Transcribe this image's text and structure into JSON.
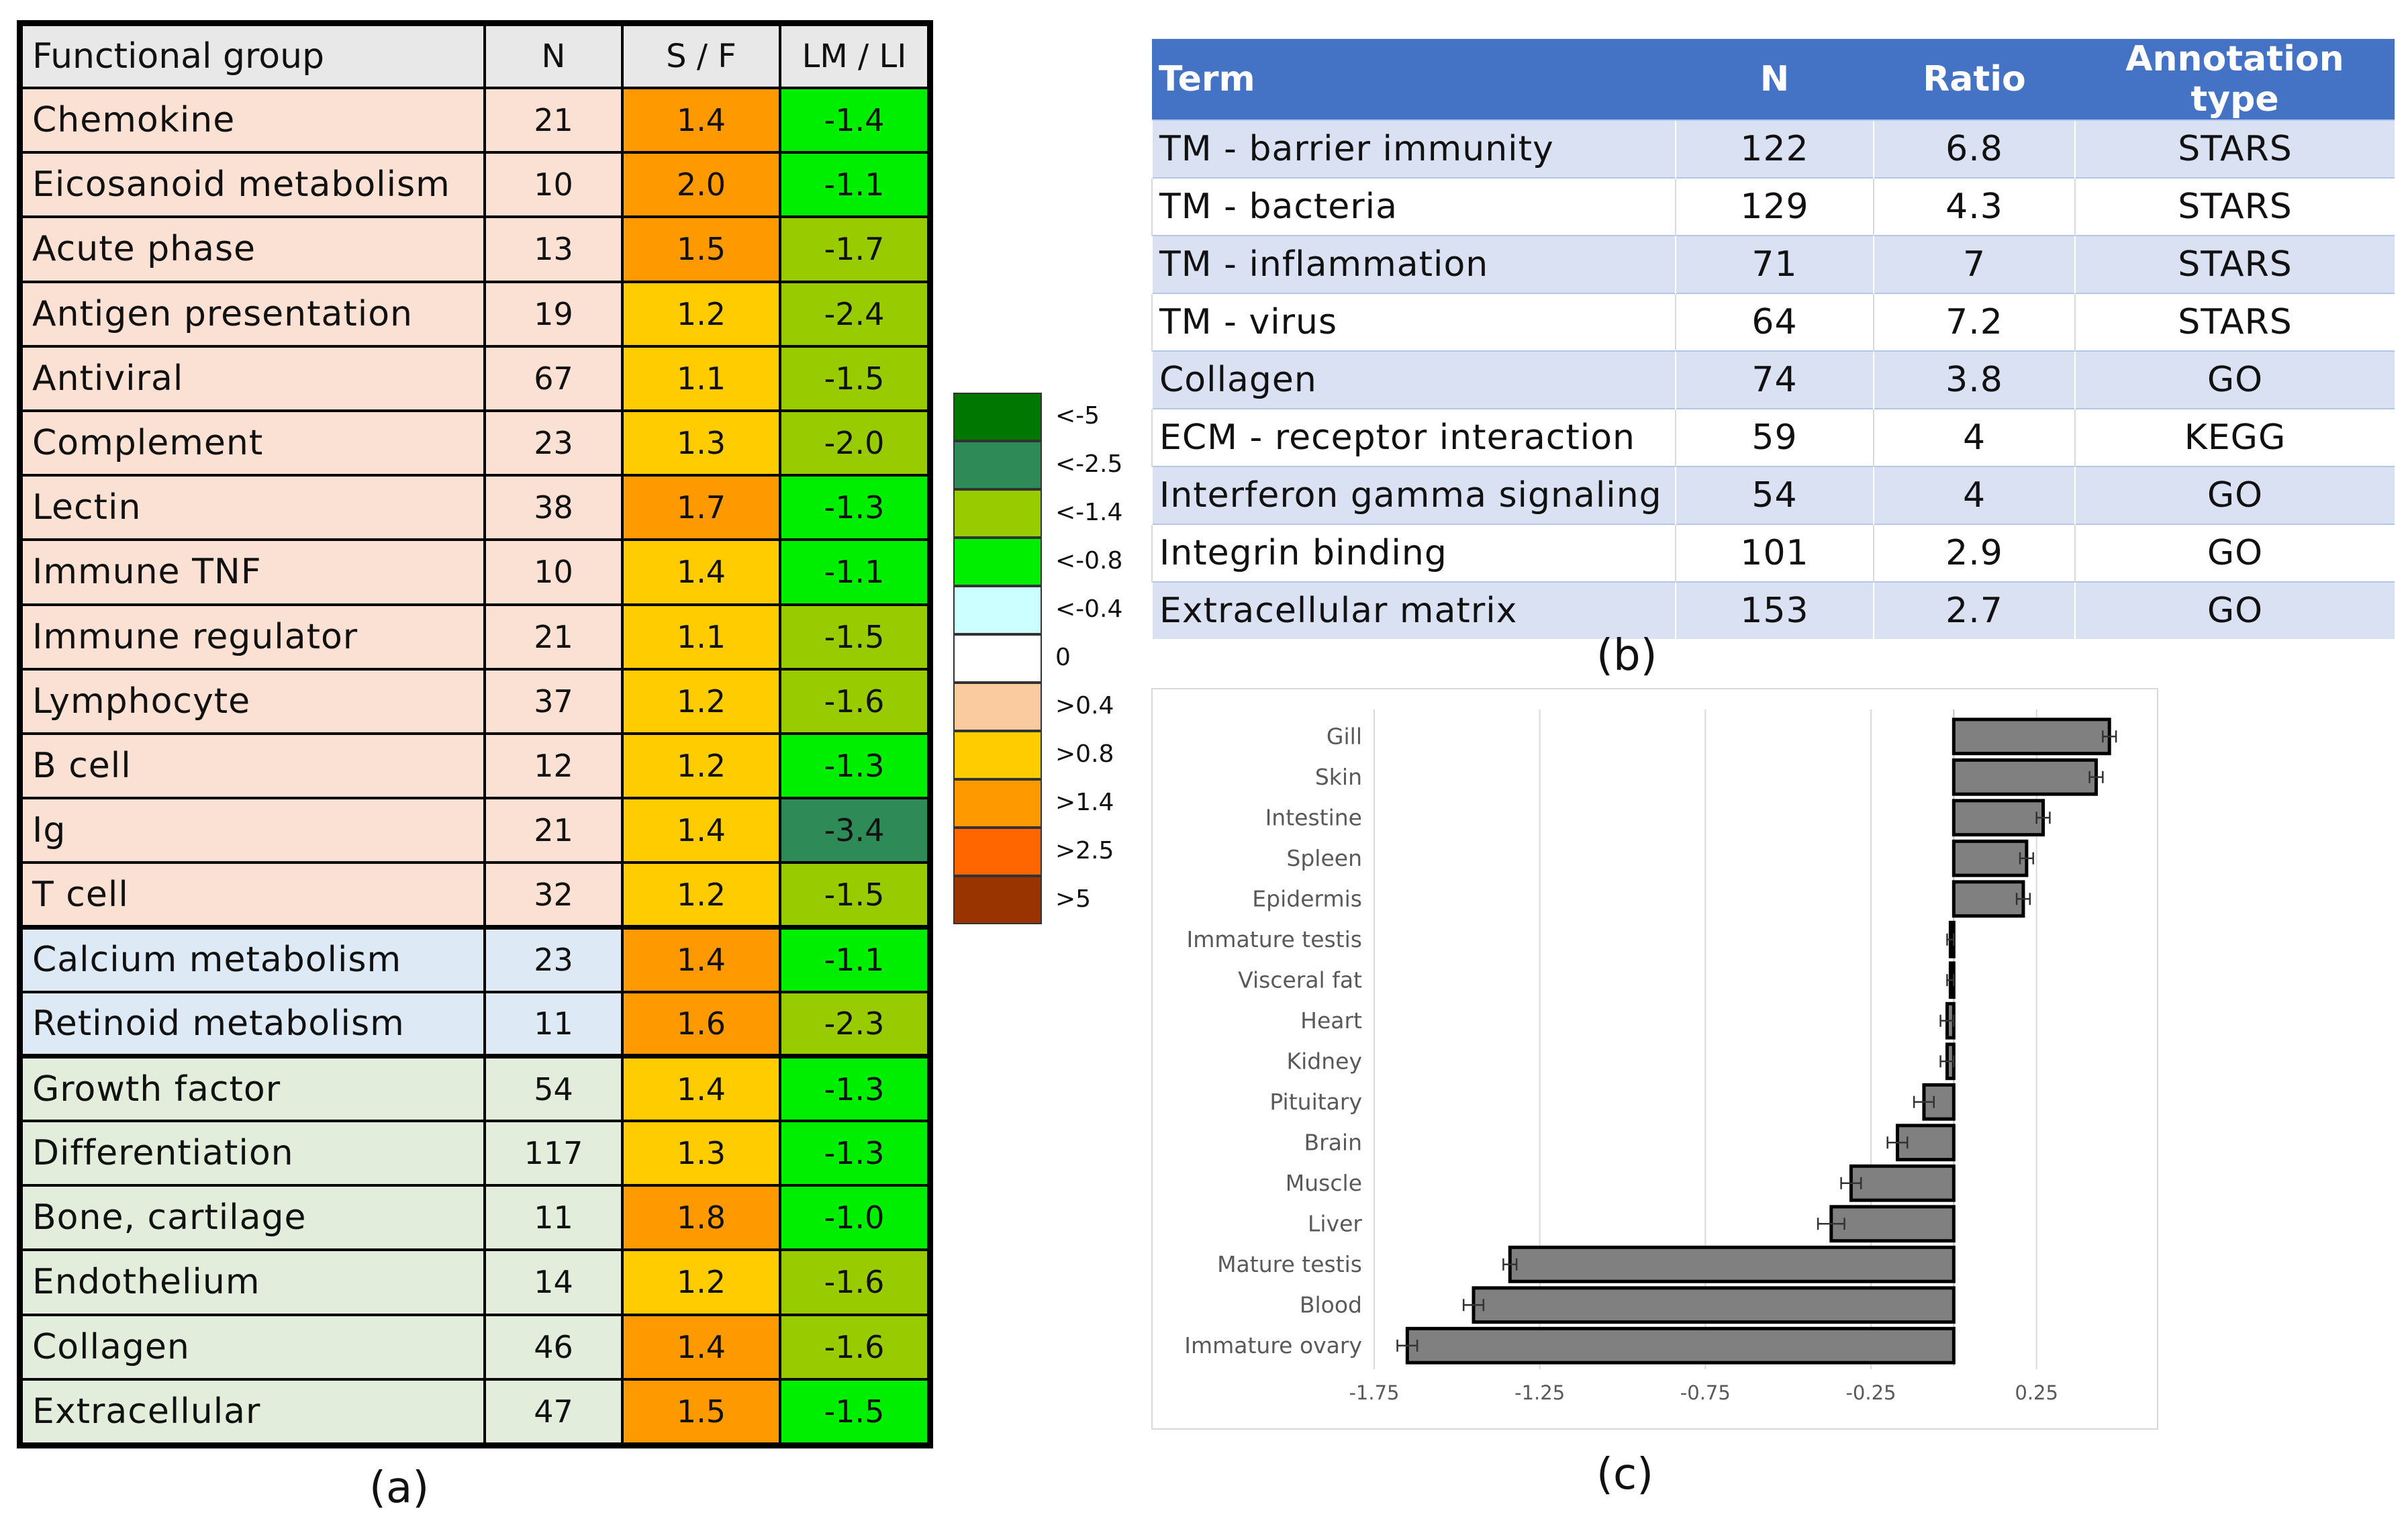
{
  "panel_a": {
    "headers": [
      "Functional group",
      "N",
      "S / F",
      "LM / LI"
    ],
    "rows": [
      {
        "name": "Chemokine",
        "n": "21",
        "sf": "1.4",
        "lmli": "-1.4",
        "group": "immune",
        "sf_color": "#ff9900",
        "lm_color": "#00ee00"
      },
      {
        "name": "Eicosanoid metabolism",
        "n": "10",
        "sf": "2.0",
        "lmli": "-1.1",
        "group": "immune",
        "sf_color": "#ff9900",
        "lm_color": "#00ee00"
      },
      {
        "name": "Acute phase",
        "n": "13",
        "sf": "1.5",
        "lmli": "-1.7",
        "group": "immune",
        "sf_color": "#ff9900",
        "lm_color": "#99cc00"
      },
      {
        "name": "Antigen presentation",
        "n": "19",
        "sf": "1.2",
        "lmli": "-2.4",
        "group": "immune",
        "sf_color": "#ffcc00",
        "lm_color": "#99cc00"
      },
      {
        "name": "Antiviral",
        "n": "67",
        "sf": "1.1",
        "lmli": "-1.5",
        "group": "immune",
        "sf_color": "#ffcc00",
        "lm_color": "#99cc00"
      },
      {
        "name": "Complement",
        "n": "23",
        "sf": "1.3",
        "lmli": "-2.0",
        "group": "immune",
        "sf_color": "#ffcc00",
        "lm_color": "#99cc00"
      },
      {
        "name": "Lectin",
        "n": "38",
        "sf": "1.7",
        "lmli": "-1.3",
        "group": "immune",
        "sf_color": "#ff9900",
        "lm_color": "#00ee00"
      },
      {
        "name": "Immune TNF",
        "n": "10",
        "sf": "1.4",
        "lmli": "-1.1",
        "group": "immune",
        "sf_color": "#ffcc00",
        "lm_color": "#00ee00"
      },
      {
        "name": "Immune regulator",
        "n": "21",
        "sf": "1.1",
        "lmli": "-1.5",
        "group": "immune",
        "sf_color": "#ffcc00",
        "lm_color": "#99cc00"
      },
      {
        "name": "Lymphocyte",
        "n": "37",
        "sf": "1.2",
        "lmli": "-1.6",
        "group": "immune",
        "sf_color": "#ffcc00",
        "lm_color": "#99cc00"
      },
      {
        "name": "B cell",
        "n": "12",
        "sf": "1.2",
        "lmli": "-1.3",
        "group": "immune",
        "sf_color": "#ffcc00",
        "lm_color": "#00ee00"
      },
      {
        "name": "Ig",
        "n": "21",
        "sf": "1.4",
        "lmli": "-3.4",
        "group": "immune",
        "sf_color": "#ffcc00",
        "lm_color": "#2e8b57"
      },
      {
        "name": "T cell",
        "n": "32",
        "sf": "1.2",
        "lmli": "-1.5",
        "group": "immune",
        "sf_color": "#ffcc00",
        "lm_color": "#99cc00"
      },
      {
        "name": "Calcium metabolism",
        "n": "23",
        "sf": "1.4",
        "lmli": "-1.1",
        "group": "metabolism",
        "sf_color": "#ff9900",
        "lm_color": "#00ee00"
      },
      {
        "name": "Retinoid metabolism",
        "n": "11",
        "sf": "1.6",
        "lmli": "-2.3",
        "group": "metabolism",
        "sf_color": "#ff9900",
        "lm_color": "#99cc00"
      },
      {
        "name": "Growth factor",
        "n": "54",
        "sf": "1.4",
        "lmli": "-1.3",
        "group": "structural",
        "sf_color": "#ffcc00",
        "lm_color": "#00ee00"
      },
      {
        "name": "Differentiation",
        "n": "117",
        "sf": "1.3",
        "lmli": "-1.3",
        "group": "structural",
        "sf_color": "#ffcc00",
        "lm_color": "#00ee00"
      },
      {
        "name": "Bone, cartilage",
        "n": "11",
        "sf": "1.8",
        "lmli": "-1.0",
        "group": "structural",
        "sf_color": "#ff9900",
        "lm_color": "#00ee00"
      },
      {
        "name": "Endothelium",
        "n": "14",
        "sf": "1.2",
        "lmli": "-1.6",
        "group": "structural",
        "sf_color": "#ffcc00",
        "lm_color": "#99cc00"
      },
      {
        "name": "Collagen",
        "n": "46",
        "sf": "1.4",
        "lmli": "-1.6",
        "group": "structural",
        "sf_color": "#ff9900",
        "lm_color": "#99cc00"
      },
      {
        "name": "Extracellular",
        "n": "47",
        "sf": "1.5",
        "lmli": "-1.5",
        "group": "structural",
        "sf_color": "#ff9900",
        "lm_color": "#00ee00"
      }
    ],
    "group_colors": {
      "immune": "#fbe1d3",
      "metabolism": "#dde9f4",
      "structural": "#e2eedb"
    },
    "header_color": "#e8e8e8",
    "caption": "(a)"
  },
  "legend": [
    {
      "label": "<-5",
      "color": "#007800"
    },
    {
      "label": "<-2.5",
      "color": "#2e8b57"
    },
    {
      "label": "<-1.4",
      "color": "#99cc00"
    },
    {
      "label": "<-0.8",
      "color": "#00ee00"
    },
    {
      "label": "<-0.4",
      "color": "#ccffff"
    },
    {
      "label": "0",
      "color": "#ffffff"
    },
    {
      "label": ">0.4",
      "color": "#fbcba0"
    },
    {
      "label": ">0.8",
      "color": "#ffcc00"
    },
    {
      "label": ">1.4",
      "color": "#ff9900"
    },
    {
      "label": ">2.5",
      "color": "#ff6600"
    },
    {
      "label": ">5",
      "color": "#993300"
    }
  ],
  "panel_b": {
    "headers": [
      "Term",
      "N",
      "Ratio",
      "Annotation type"
    ],
    "rows": [
      {
        "term": "TM - barrier immunity",
        "n": "122",
        "ratio": "6.8",
        "type": "STARS"
      },
      {
        "term": "TM - bacteria",
        "n": "129",
        "ratio": "4.3",
        "type": "STARS"
      },
      {
        "term": "TM - inflammation",
        "n": "71",
        "ratio": "7",
        "type": "STARS"
      },
      {
        "term": "TM - virus",
        "n": "64",
        "ratio": "7.2",
        "type": "STARS"
      },
      {
        "term": "Collagen",
        "n": "74",
        "ratio": "3.8",
        "type": "GO"
      },
      {
        "term": "ECM - receptor interaction",
        "n": "59",
        "ratio": "4",
        "type": "KEGG"
      },
      {
        "term": "Interferon gamma signaling",
        "n": "54",
        "ratio": "4",
        "type": "GO"
      },
      {
        "term": "Integrin binding",
        "n": "101",
        "ratio": "2.9",
        "type": "GO"
      },
      {
        "term": "Extracellular matrix",
        "n": "153",
        "ratio": "2.7",
        "type": "GO"
      }
    ],
    "header_color": "#4472c4",
    "band_color": "#d9e1f2",
    "caption": "(b)"
  },
  "chart_data": {
    "type": "bar",
    "orientation": "horizontal",
    "categories": [
      "Gill",
      "Skin",
      "Intestine",
      "Spleen",
      "Epidermis",
      "Immature testis",
      "Visceral fat",
      "Heart",
      "Kidney",
      "Pituitary",
      "Brain",
      "Muscle",
      "Liver",
      "Mature testis",
      "Blood",
      "Immature ovary"
    ],
    "values": [
      0.47,
      0.43,
      0.27,
      0.22,
      0.21,
      -0.01,
      -0.01,
      -0.02,
      -0.02,
      -0.09,
      -0.17,
      -0.31,
      -0.37,
      -1.34,
      -1.45,
      -1.65
    ],
    "errors": [
      0.02,
      0.02,
      0.02,
      0.02,
      0.02,
      0.01,
      0.01,
      0.02,
      0.02,
      0.03,
      0.03,
      0.03,
      0.04,
      0.02,
      0.03,
      0.03
    ],
    "xlim": [
      -1.75,
      0.5
    ],
    "xticks": [
      "-1.75",
      "-1.25",
      "-0.75",
      "-0.25",
      "0.25"
    ],
    "xtick_values": [
      -1.75,
      -1.25,
      -0.75,
      -0.25,
      0.25
    ],
    "grid": true,
    "bar_color": "#808080",
    "title": "",
    "xlabel": "",
    "ylabel": "",
    "caption": "(c)"
  }
}
